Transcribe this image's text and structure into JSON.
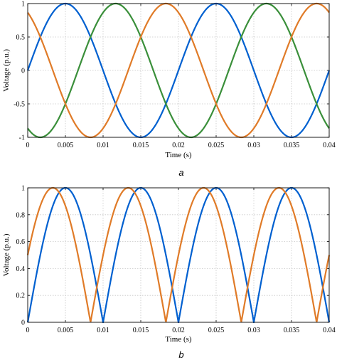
{
  "chart_data": [
    {
      "type": "line",
      "caption": "a",
      "xlabel": "Time (s)",
      "ylabel": "Voltage (p.u.)",
      "xlim": [
        0,
        0.04
      ],
      "ylim": [
        -1,
        1
      ],
      "xticks": [
        "0",
        "0.005",
        "0.01",
        "0.015",
        "0.02",
        "0.025",
        "0.03",
        "0.035",
        "0.04"
      ],
      "yticks": [
        "-1",
        "-0.5",
        "0",
        "0.5",
        "1"
      ],
      "grid": true,
      "series": [
        {
          "color": "#0060D0",
          "function": "sin",
          "amplitude": 1,
          "frequency_hz": 50,
          "phase_deg": 0
        },
        {
          "color": "#3A8F3A",
          "function": "sin",
          "amplitude": 1,
          "frequency_hz": 50,
          "phase_deg": -120
        },
        {
          "color": "#E07B28",
          "function": "sin",
          "amplitude": 1,
          "frequency_hz": 50,
          "phase_deg": 120
        }
      ]
    },
    {
      "type": "line",
      "caption": "b",
      "xlabel": "Time (s)",
      "ylabel": "Voltage (p.u.)",
      "xlim": [
        0,
        0.04
      ],
      "ylim": [
        0,
        1
      ],
      "xticks": [
        "0",
        "0.005",
        "0.01",
        "0.015",
        "0.02",
        "0.025",
        "0.03",
        "0.035",
        "0.04"
      ],
      "yticks": [
        "0",
        "0.2",
        "0.4",
        "0.6",
        "0.8",
        "1"
      ],
      "grid": true,
      "series": [
        {
          "color": "#0060D0",
          "function": "abs_sin",
          "amplitude": 1,
          "frequency_hz": 50,
          "phase_deg": 0
        },
        {
          "color": "#E07B28",
          "function": "abs_sin",
          "amplitude": 1,
          "frequency_hz": 50,
          "phase_deg": 30
        }
      ]
    }
  ]
}
